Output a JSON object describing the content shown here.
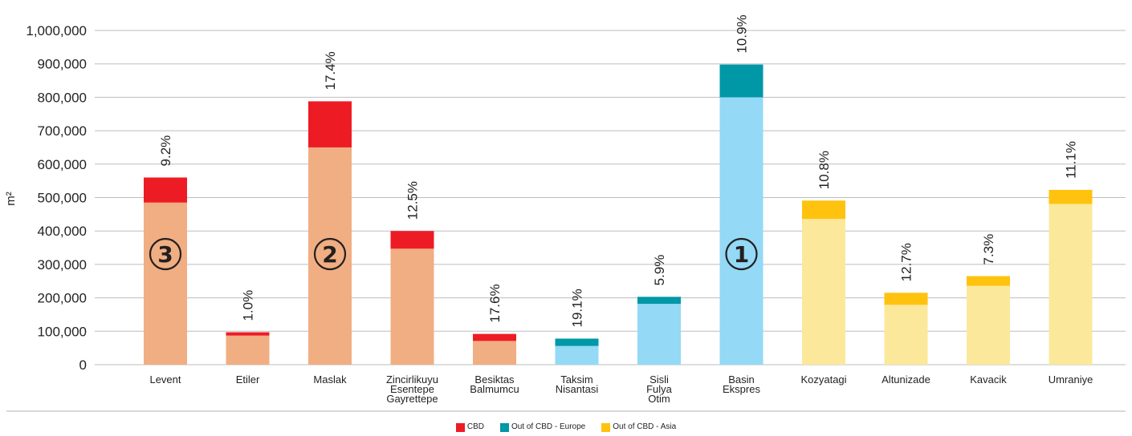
{
  "chart_data": {
    "type": "bar",
    "ylabel": "m²",
    "ylim": [
      0,
      1000000
    ],
    "yticks": [
      "0",
      "100,000",
      "200,000",
      "300,000",
      "400,000",
      "500,000",
      "600,000",
      "700,000",
      "800,000",
      "900,000",
      "1,000,000"
    ],
    "categories": [
      [
        "Levent"
      ],
      [
        "Etiler"
      ],
      [
        "Maslak"
      ],
      [
        "Zincirlikuyu",
        "Esentepe",
        "Gayrettepe"
      ],
      [
        "Besiktas",
        "Balmumcu"
      ],
      [
        "Taksim",
        "Nisantasi"
      ],
      [
        "Sisli",
        "Fulya",
        "Otim"
      ],
      [
        "Basin",
        "Ekspres"
      ],
      [
        "Kozyatagi"
      ],
      [
        "Altunizade"
      ],
      [
        "Kavacik"
      ],
      [
        "Umraniye"
      ]
    ],
    "groups": [
      "CBD",
      "CBD",
      "CBD",
      "CBD",
      "CBD",
      "Out of CBD - Europe",
      "Out of CBD - Europe",
      "Out of CBD - Europe",
      "Out of CBD - Asia",
      "Out of CBD - Asia",
      "Out of CBD - Asia",
      "Out of CBD - Asia"
    ],
    "totals": [
      560000,
      97000,
      788000,
      400000,
      92000,
      78000,
      203000,
      898000,
      491000,
      215000,
      265000,
      523000
    ],
    "lower_values": [
      485000,
      87000,
      650000,
      347000,
      71000,
      56000,
      182000,
      800000,
      436000,
      179000,
      236000,
      481000
    ],
    "vacancy_labels": [
      "9.2%",
      "1.0%",
      "17.4%",
      "12.5%",
      "17.6%",
      "19.1%",
      "5.9%",
      "10.9%",
      "10.8%",
      "12.7%",
      "7.3%",
      "11.1%"
    ],
    "rank_markers": [
      {
        "category_index": 7,
        "label": "1"
      },
      {
        "category_index": 2,
        "label": "2"
      },
      {
        "category_index": 0,
        "label": "3"
      }
    ],
    "legend": {
      "position": "bottom-center",
      "items": [
        {
          "label": "CBD",
          "color": "#ed1c24"
        },
        {
          "label": "Out of CBD - Europe",
          "color": "#0097a7"
        },
        {
          "label": "Out of CBD - Asia",
          "color": "#ffc20e"
        }
      ]
    },
    "colors": {
      "CBD": {
        "top": "#ed1c24",
        "lower": "#f0ae82"
      },
      "Out of CBD - Europe": {
        "top": "#0097a7",
        "lower": "#94d9f5"
      },
      "Out of CBD - Asia": {
        "top": "#ffc20e",
        "lower": "#fbe89a"
      }
    },
    "grid": true
  }
}
